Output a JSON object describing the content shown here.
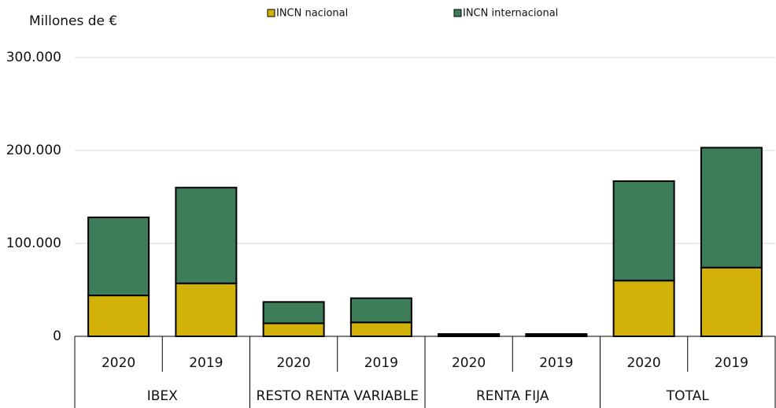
{
  "chart_data": {
    "type": "stacked_bar",
    "y_axis_label": "Millones de €",
    "categories": [
      "2020",
      "2019",
      "2020",
      "2019",
      "2020",
      "2019",
      "2020",
      "2019"
    ],
    "groups": [
      "IBEX",
      "RESTO RENTA VARIABLE",
      "RENTA FIJA",
      "TOTAL"
    ],
    "series": [
      {
        "name": "INCN nacional",
        "color": "#d2b108",
        "values": [
          44000,
          57000,
          14000,
          15000,
          1500,
          1500,
          60000,
          74000
        ]
      },
      {
        "name": "INCN internacional",
        "color": "#3e7d59",
        "values": [
          84000,
          103000,
          23000,
          26000,
          1000,
          1000,
          107000,
          129000
        ]
      }
    ],
    "ylim": [
      0,
      300000
    ],
    "yticks": [
      0,
      {
        "value": 100000,
        "label": "100.000"
      },
      {
        "value": 200000,
        "label": "200.000"
      },
      {
        "value": 300000,
        "label": "300.000"
      }
    ],
    "grid": true,
    "legend": "top"
  }
}
